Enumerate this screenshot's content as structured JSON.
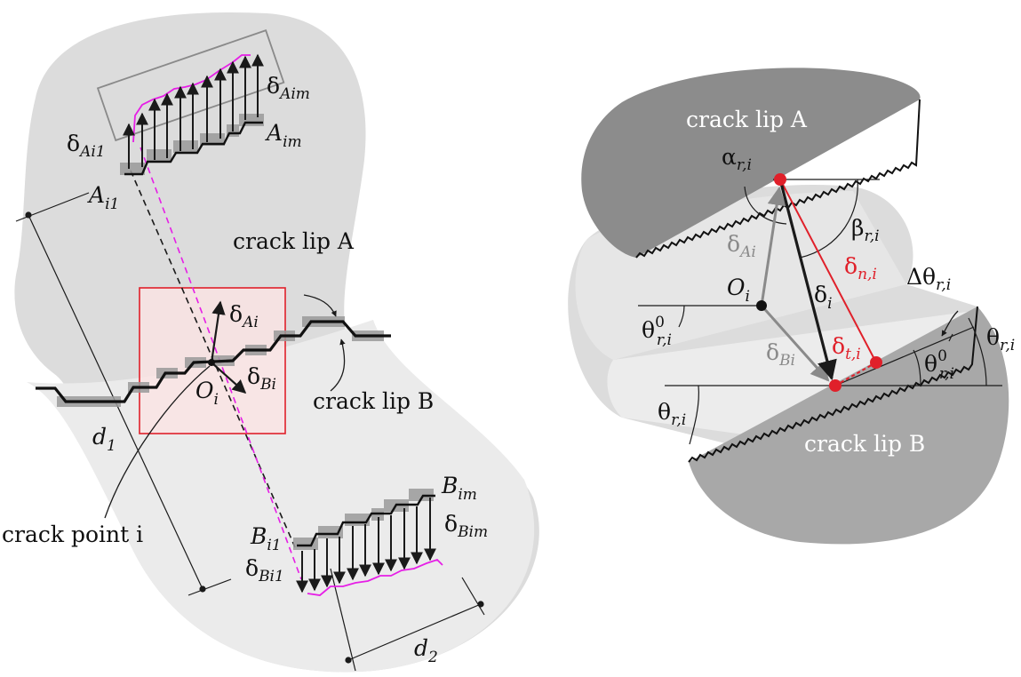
{
  "left_panel": {
    "delta_Aim": {
      "base": "δ",
      "sub": "Aim"
    },
    "A_im": {
      "base": "A",
      "sub": "im"
    },
    "delta_Ai1": {
      "base": "δ",
      "sub": "Ai1"
    },
    "A_i1": {
      "base": "A",
      "sub": "i1"
    },
    "crack_lip_A": "crack lip A",
    "delta_Ai": {
      "base": "δ",
      "sub": "Ai"
    },
    "O_i": {
      "base": "O",
      "sub": "i"
    },
    "delta_Bi": {
      "base": "δ",
      "sub": "Bi"
    },
    "crack_lip_B": "crack lip B",
    "d1": {
      "base": "d",
      "sub": "1"
    },
    "crack_point": "crack point i",
    "B_im": {
      "base": "B",
      "sub": "im"
    },
    "delta_Bim": {
      "base": "δ",
      "sub": "Bim"
    },
    "B_i1": {
      "base": "B",
      "sub": "i1"
    },
    "delta_Bi1": {
      "base": "δ",
      "sub": "Bi1"
    },
    "d2": {
      "base": "d",
      "sub": "2"
    }
  },
  "right_panel": {
    "crack_lip_A": "crack lip A",
    "crack_lip_B": "crack lip B",
    "alpha": {
      "base": "α",
      "sub": "r,i"
    },
    "beta": {
      "base": "β",
      "sub": "r,i"
    },
    "delta_Ai": {
      "base": "δ",
      "sub": "Ai"
    },
    "delta_ni": {
      "base": "δ",
      "sub": "n,i"
    },
    "delta_theta": {
      "base": "Δθ",
      "sub": "r,i"
    },
    "O_i": {
      "base": "O",
      "sub": "i"
    },
    "delta_i": {
      "base": "δ",
      "sub": "i"
    },
    "theta0_left": {
      "base": "θ",
      "sub": "r,i",
      "sup": "0"
    },
    "theta_right": {
      "base": "θ",
      "sub": "r,i"
    },
    "delta_Bi": {
      "base": "δ",
      "sub": "Bi"
    },
    "delta_ti": {
      "base": "δ",
      "sub": "t,i"
    },
    "theta0_right": {
      "base": "θ",
      "sub": "r,i",
      "sup": "0"
    },
    "theta_left": {
      "base": "θ",
      "sub": "r,i"
    }
  },
  "colors": {
    "magenta": "#e61ee6",
    "red": "#e0202a",
    "dark": "#1a1a1a",
    "grey_arrow": "#8a8a8a",
    "region_light": "#dcdcdc",
    "region_lighter": "#ececec",
    "lip_dark": "#8c8c8c",
    "lip_mid": "#a8a8a8",
    "square": "#9a9a9a",
    "red_box_fill": "#fbe3e3"
  }
}
